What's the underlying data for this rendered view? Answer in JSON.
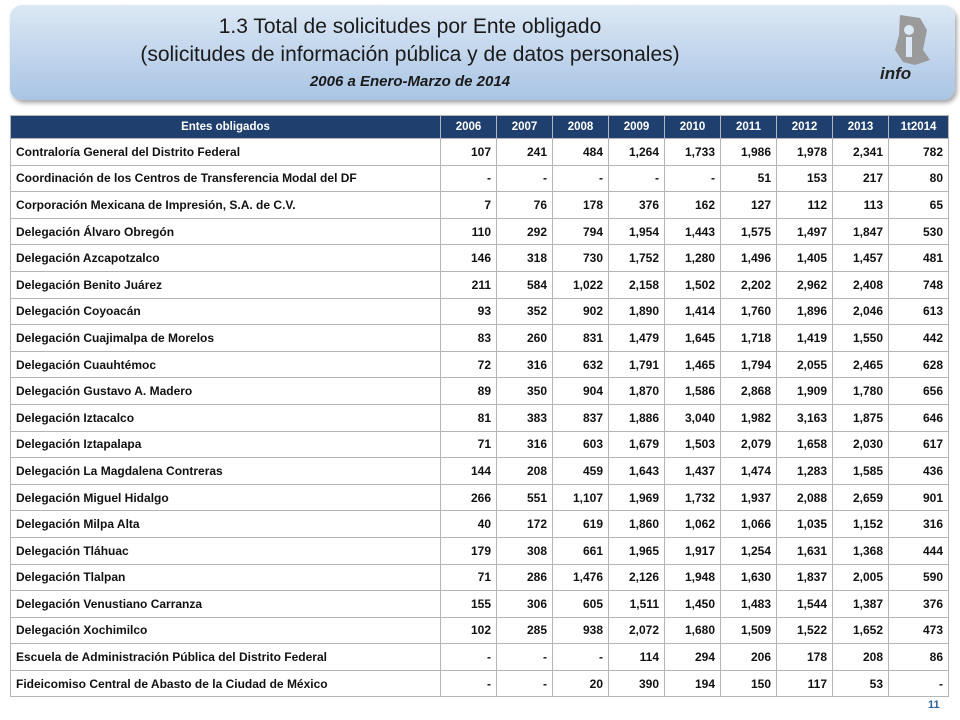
{
  "header": {
    "title": "1.3 Total de solicitudes por Ente obligado",
    "subtitle": "(solicitudes de información pública y de datos personales)",
    "period": "2006 a Enero-Marzo de 2014"
  },
  "logo": {
    "text": "info"
  },
  "table": {
    "columns": [
      "Entes obligados",
      "2006",
      "2007",
      "2008",
      "2009",
      "2010",
      "2011",
      "2012",
      "2013",
      "1t2014"
    ],
    "rows": [
      [
        "Contraloría General del Distrito Federal",
        "107",
        "241",
        "484",
        "1,264",
        "1,733",
        "1,986",
        "1,978",
        "2,341",
        "782"
      ],
      [
        "Coordinación de los Centros de Transferencia Modal del DF",
        "-",
        "-",
        "-",
        "-",
        "-",
        "51",
        "153",
        "217",
        "80"
      ],
      [
        "Corporación Mexicana de Impresión, S.A. de C.V.",
        "7",
        "76",
        "178",
        "376",
        "162",
        "127",
        "112",
        "113",
        "65"
      ],
      [
        "Delegación Álvaro Obregón",
        "110",
        "292",
        "794",
        "1,954",
        "1,443",
        "1,575",
        "1,497",
        "1,847",
        "530"
      ],
      [
        "Delegación Azcapotzalco",
        "146",
        "318",
        "730",
        "1,752",
        "1,280",
        "1,496",
        "1,405",
        "1,457",
        "481"
      ],
      [
        "Delegación Benito Juárez",
        "211",
        "584",
        "1,022",
        "2,158",
        "1,502",
        "2,202",
        "2,962",
        "2,408",
        "748"
      ],
      [
        "Delegación Coyoacán",
        "93",
        "352",
        "902",
        "1,890",
        "1,414",
        "1,760",
        "1,896",
        "2,046",
        "613"
      ],
      [
        "Delegación Cuajimalpa de Morelos",
        "83",
        "260",
        "831",
        "1,479",
        "1,645",
        "1,718",
        "1,419",
        "1,550",
        "442"
      ],
      [
        "Delegación Cuauhtémoc",
        "72",
        "316",
        "632",
        "1,791",
        "1,465",
        "1,794",
        "2,055",
        "2,465",
        "628"
      ],
      [
        "Delegación Gustavo A. Madero",
        "89",
        "350",
        "904",
        "1,870",
        "1,586",
        "2,868",
        "1,909",
        "1,780",
        "656"
      ],
      [
        "Delegación Iztacalco",
        "81",
        "383",
        "837",
        "1,886",
        "3,040",
        "1,982",
        "3,163",
        "1,875",
        "646"
      ],
      [
        "Delegación Iztapalapa",
        "71",
        "316",
        "603",
        "1,679",
        "1,503",
        "2,079",
        "1,658",
        "2,030",
        "617"
      ],
      [
        "Delegación La Magdalena Contreras",
        "144",
        "208",
        "459",
        "1,643",
        "1,437",
        "1,474",
        "1,283",
        "1,585",
        "436"
      ],
      [
        "Delegación Miguel Hidalgo",
        "266",
        "551",
        "1,107",
        "1,969",
        "1,732",
        "1,937",
        "2,088",
        "2,659",
        "901"
      ],
      [
        "Delegación Milpa Alta",
        "40",
        "172",
        "619",
        "1,860",
        "1,062",
        "1,066",
        "1,035",
        "1,152",
        "316"
      ],
      [
        "Delegación Tláhuac",
        "179",
        "308",
        "661",
        "1,965",
        "1,917",
        "1,254",
        "1,631",
        "1,368",
        "444"
      ],
      [
        "Delegación Tlalpan",
        "71",
        "286",
        "1,476",
        "2,126",
        "1,948",
        "1,630",
        "1,837",
        "2,005",
        "590"
      ],
      [
        "Delegación Venustiano Carranza",
        "155",
        "306",
        "605",
        "1,511",
        "1,450",
        "1,483",
        "1,544",
        "1,387",
        "376"
      ],
      [
        "Delegación Xochimilco",
        "102",
        "285",
        "938",
        "2,072",
        "1,680",
        "1,509",
        "1,522",
        "1,652",
        "473"
      ],
      [
        "Escuela de Administración Pública del Distrito Federal",
        "-",
        "-",
        "-",
        "114",
        "294",
        "206",
        "178",
        "208",
        "86"
      ],
      [
        "Fideicomiso Central de Abasto de la Ciudad de México",
        "-",
        "-",
        "20",
        "390",
        "194",
        "150",
        "117",
        "53",
        "-"
      ]
    ]
  },
  "page_number": "11"
}
